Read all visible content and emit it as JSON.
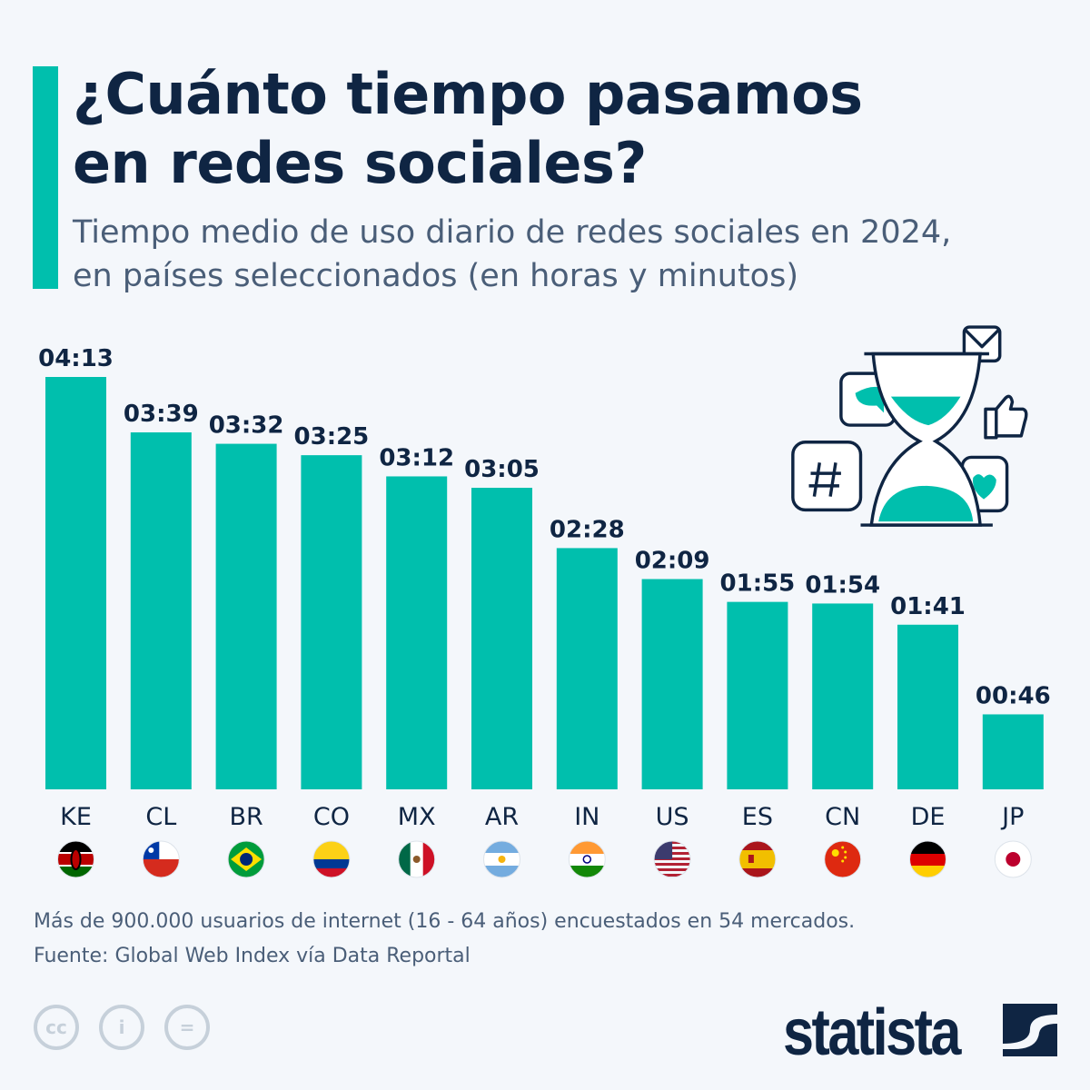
{
  "header": {
    "title_line1": "¿Cuánto tiempo pasamos",
    "title_line2": "en redes sociales?",
    "subtitle_line1": "Tiempo medio de uso diario de redes sociales en 2024,",
    "subtitle_line2": "en países seleccionados (en horas y minutos)"
  },
  "chart_data": {
    "type": "bar",
    "categories": [
      "KE",
      "CL",
      "BR",
      "CO",
      "MX",
      "AR",
      "IN",
      "US",
      "ES",
      "CN",
      "DE",
      "JP"
    ],
    "values_minutes": [
      253,
      219,
      212,
      205,
      192,
      185,
      148,
      129,
      115,
      114,
      101,
      46
    ],
    "data_labels": [
      "04:13",
      "03:39",
      "03:32",
      "03:25",
      "03:12",
      "03:05",
      "02:28",
      "02:09",
      "01:55",
      "01:54",
      "01:41",
      "00:46"
    ],
    "bar_color": "#00bfad",
    "grid": false,
    "flags": [
      "kenya",
      "chile",
      "brazil",
      "colombia",
      "mexico",
      "argentina",
      "india",
      "usa",
      "spain",
      "china",
      "germany",
      "japan"
    ]
  },
  "footer": {
    "note": "Más de 900.000 usuarios de internet (16 - 64 años) encuestados en 54 mercados.",
    "source": "Fuente: Global Web Index vía Data Reportal",
    "license_icons": [
      "cc-icon",
      "attribution-icon",
      "no-derivatives-icon"
    ],
    "brand": "statista"
  },
  "colors": {
    "accent": "#00bfad",
    "text": "#0f2543",
    "muted": "#4a5e78"
  }
}
